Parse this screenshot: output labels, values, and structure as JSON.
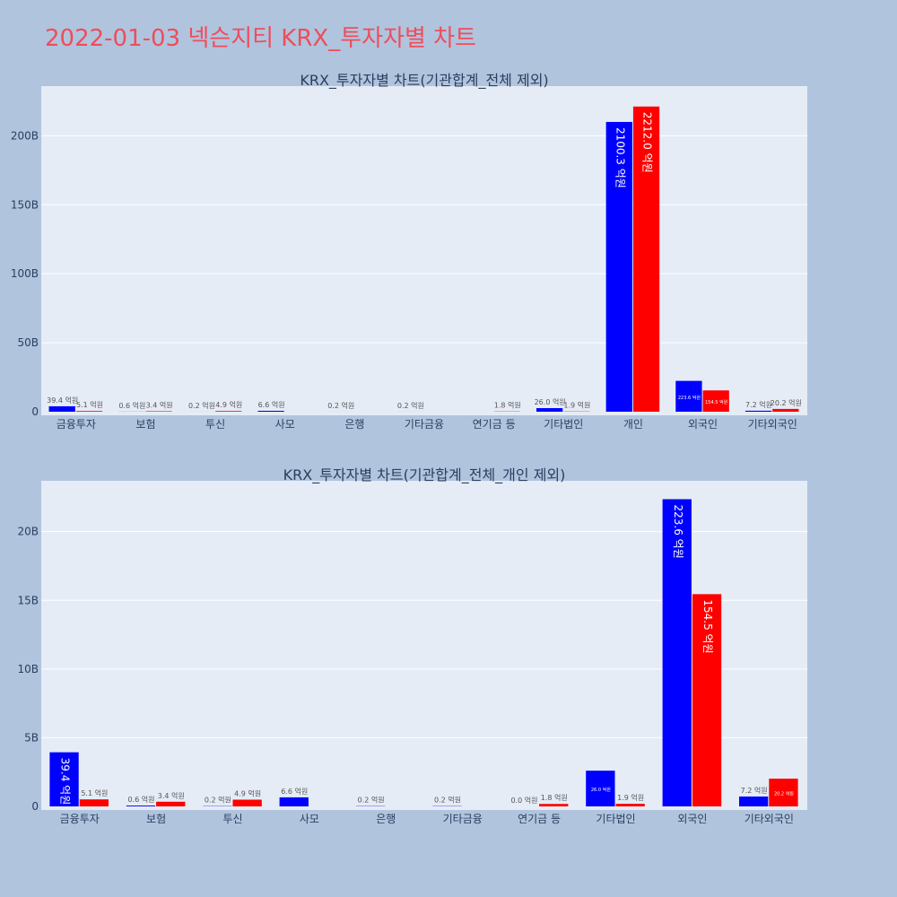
{
  "page": {
    "title": "2022-01-03 넥슨지티 KRX_투자자별 차트"
  },
  "colors": {
    "buy": "#0000ff",
    "sell": "#ff0000",
    "plot_bg": "#e5ecf6",
    "page_bg": "#b0c4de",
    "grid": "#ffffff",
    "text": "#2a3f5f"
  },
  "chart_data": [
    {
      "type": "bar",
      "title": "KRX_투자자별 차트(기관합계_전체 제외)",
      "ylim": [
        0,
        236
      ],
      "yticks": [
        0,
        50,
        100,
        150,
        200
      ],
      "ytick_labels": [
        "0",
        "50B",
        "100B",
        "150B",
        "200B"
      ],
      "unit_scale": "억원 → 0.1B",
      "grid": true,
      "categories": [
        "금융투자",
        "보험",
        "투신",
        "사모",
        "은행",
        "기타금융",
        "연기금 등",
        "기타법인",
        "개인",
        "외국인",
        "기타외국인"
      ],
      "series": [
        {
          "color": "#0000ff",
          "values": [
            3.94,
            0.06,
            0.02,
            0.66,
            0.02,
            0.02,
            0.0,
            2.6,
            210.03,
            22.36,
            0.72
          ],
          "labels": [
            "39.4 억원",
            "0.6 억원",
            "0.2 억원",
            "6.6 억원",
            "0.2 억원",
            "0.2 억원",
            "",
            "26.0 억원",
            "2100.3 억원",
            "223.6 억원",
            "7.2 억원"
          ]
        },
        {
          "color": "#ff0000",
          "values": [
            0.51,
            0.34,
            0.49,
            0.0,
            0.0,
            0.0,
            0.18,
            0.19,
            221.2,
            15.45,
            2.02
          ],
          "labels": [
            "5.1 억원",
            "3.4 억원",
            "4.9 억원",
            "",
            "",
            "",
            "1.8 억원",
            "1.9 억원",
            "2212.0 억원",
            "154.5 억원",
            "20.2 억원"
          ]
        }
      ]
    },
    {
      "type": "bar",
      "title": "KRX_투자자별 차트(기관합계_전체_개인 제외)",
      "ylim": [
        0,
        23.7
      ],
      "yticks": [
        0,
        5,
        10,
        15,
        20
      ],
      "ytick_labels": [
        "0",
        "5B",
        "10B",
        "15B",
        "20B"
      ],
      "grid": true,
      "categories": [
        "금융투자",
        "보험",
        "투신",
        "사모",
        "은행",
        "기타금융",
        "연기금 등",
        "기타법인",
        "외국인",
        "기타외국인"
      ],
      "series": [
        {
          "color": "#0000ff",
          "values": [
            3.94,
            0.06,
            0.02,
            0.66,
            0.02,
            0.02,
            0.0,
            2.6,
            22.36,
            0.72
          ],
          "labels": [
            "39.4 억원",
            "0.6 억원",
            "0.2 억원",
            "6.6 억원",
            "0.2 억원",
            "0.2 억원",
            "0.0 억원",
            "26.0 억원",
            "223.6 억원",
            "7.2 억원"
          ]
        },
        {
          "color": "#ff0000",
          "values": [
            0.51,
            0.34,
            0.49,
            0.0,
            0.0,
            0.0,
            0.18,
            0.19,
            15.45,
            2.02
          ],
          "labels": [
            "5.1 억원",
            "3.4 억원",
            "4.9 억원",
            "",
            "",
            "",
            "1.8 억원",
            "1.9 억원",
            "154.5 억원",
            "20.2 억원"
          ]
        }
      ]
    }
  ]
}
